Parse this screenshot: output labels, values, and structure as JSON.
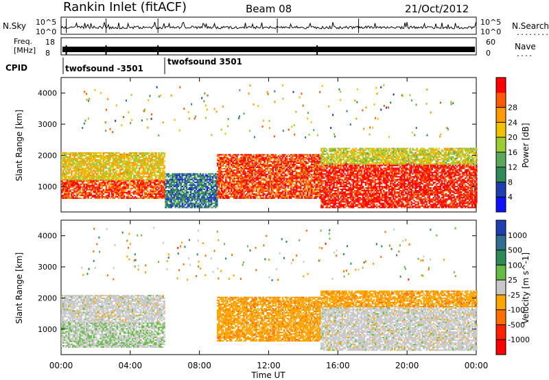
{
  "header": {
    "title": "Rankin Inlet (fitACF)",
    "beam": "Beam 08",
    "date": "21/Oct/2012"
  },
  "panels": {
    "nsky_label": "N.Sky",
    "nsearch_label": "N.Search",
    "nsearch_dots": "........",
    "freq_label_line1": "Freq.",
    "freq_label_line2": "[MHz]",
    "nave_label": "Nave",
    "nave_dots": "....",
    "cpid_label": "CPID",
    "nsky_ticks": [
      "10^5",
      "10^0"
    ],
    "nsearch_ticks": [
      "10^5",
      "10^0"
    ],
    "freq_ticks": [
      "18",
      "8"
    ],
    "nave_ticks": [
      "60",
      "0"
    ],
    "cpid_segments": [
      {
        "label": "twofsound -3501"
      },
      {
        "label": "twofsound 3501"
      }
    ]
  },
  "chart_data": [
    {
      "type": "heatmap",
      "variable": "power",
      "ylabel": "Slant Range [km]",
      "xlabel": "",
      "x_ticks": [
        "00:00",
        "04:00",
        "08:00",
        "12:00",
        "16:00",
        "20:00",
        "00:00"
      ],
      "y_ticks": [
        1000,
        2000,
        3000,
        4000
      ],
      "ylim": [
        180,
        4500
      ],
      "xlim_hours": [
        0,
        24
      ],
      "colorbar": {
        "label": "Power [dB]",
        "ticks": [
          4,
          8,
          12,
          16,
          20,
          24,
          28
        ],
        "range": [
          0,
          32
        ],
        "colors": [
          "#1010ff",
          "#1f3fb0",
          "#2e8b57",
          "#5aa85a",
          "#9acd32",
          "#f2c200",
          "#ff9a00",
          "#ff5a00",
          "#ff0000"
        ]
      },
      "regions": [
        {
          "t": [
            0,
            6
          ],
          "r": [
            600,
            1200
          ],
          "value": 28
        },
        {
          "t": [
            0,
            6
          ],
          "r": [
            1200,
            2100
          ],
          "value": 20
        },
        {
          "t": [
            6,
            9
          ],
          "r": [
            300,
            1400
          ],
          "value": 8
        },
        {
          "t": [
            9,
            15
          ],
          "r": [
            600,
            2000
          ],
          "value": 28
        },
        {
          "t": [
            15,
            24
          ],
          "r": [
            300,
            1700
          ],
          "value": 30
        },
        {
          "t": [
            15,
            24
          ],
          "r": [
            1700,
            2200
          ],
          "value": 18
        }
      ]
    },
    {
      "type": "heatmap",
      "variable": "velocity",
      "ylabel": "Slant Range [km]",
      "xlabel": "Time UT",
      "x_ticks": [
        "00:00",
        "04:00",
        "08:00",
        "12:00",
        "16:00",
        "20:00",
        "00:00"
      ],
      "y_ticks": [
        1000,
        2000,
        3000,
        4000
      ],
      "ylim": [
        180,
        4500
      ],
      "xlim_hours": [
        0,
        24
      ],
      "colorbar": {
        "label": "Velocity [m s^-1]",
        "ticks": [
          "1000",
          "500",
          "100",
          "25",
          "-25",
          "-100",
          "-500",
          "-1000"
        ],
        "colors": [
          "#1f3fb0",
          "#2e6e8e",
          "#2e8b57",
          "#66bb44",
          "#c8c8c8",
          "#ffa500",
          "#ff7000",
          "#ff2000",
          "#ff0000"
        ]
      },
      "regions": [
        {
          "t": [
            0,
            6
          ],
          "r": [
            400,
            1200
          ],
          "value": 100
        },
        {
          "t": [
            0,
            6
          ],
          "r": [
            1200,
            2100
          ],
          "value": 0
        },
        {
          "t": [
            9,
            15
          ],
          "r": [
            600,
            2000
          ],
          "value": -300
        },
        {
          "t": [
            15,
            24
          ],
          "r": [
            300,
            1700
          ],
          "value": 0
        },
        {
          "t": [
            15,
            24
          ],
          "r": [
            1700,
            2200
          ],
          "value": -300
        }
      ]
    }
  ]
}
